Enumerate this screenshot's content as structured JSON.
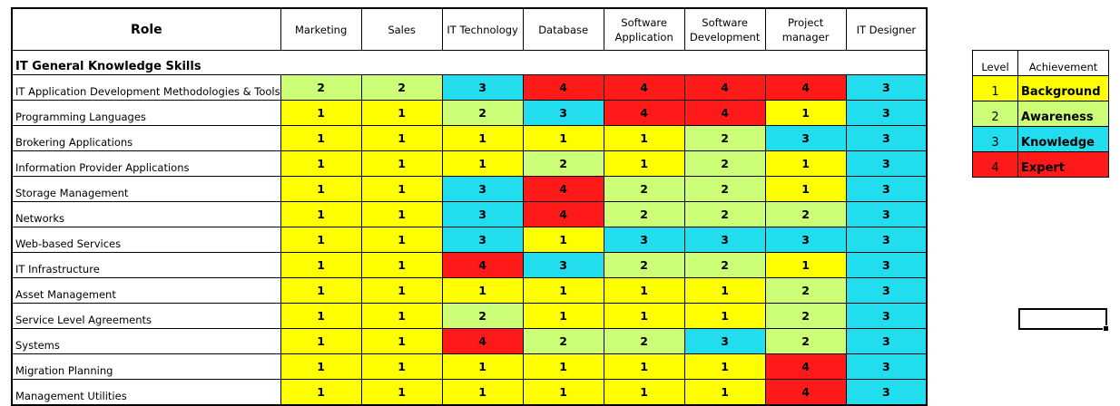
{
  "header": {
    "role": "Role",
    "roles": [
      "Marketing",
      "Sales",
      "IT Technology",
      "Database",
      "Software Application",
      "Software Development",
      "Project manager",
      "IT Designer"
    ]
  },
  "section_title": "IT General Knowledge Skills",
  "skills": [
    {
      "name": "IT Application Development Methodologies & Tools",
      "levels": [
        2,
        2,
        3,
        4,
        4,
        4,
        4,
        3
      ]
    },
    {
      "name": "Programming Languages",
      "levels": [
        1,
        1,
        2,
        3,
        4,
        4,
        1,
        3
      ]
    },
    {
      "name": "Brokering Applications",
      "levels": [
        1,
        1,
        1,
        1,
        1,
        2,
        3,
        3
      ]
    },
    {
      "name": "Information Provider Applications",
      "levels": [
        1,
        1,
        1,
        2,
        1,
        2,
        1,
        3
      ]
    },
    {
      "name": "Storage Management",
      "levels": [
        1,
        1,
        3,
        4,
        2,
        2,
        1,
        3
      ]
    },
    {
      "name": "Networks",
      "levels": [
        1,
        1,
        3,
        4,
        2,
        2,
        2,
        3
      ]
    },
    {
      "name": "Web-based Services",
      "levels": [
        1,
        1,
        3,
        1,
        3,
        3,
        3,
        3
      ]
    },
    {
      "name": "IT Infrastructure",
      "levels": [
        1,
        1,
        4,
        3,
        2,
        2,
        1,
        3
      ]
    },
    {
      "name": "Asset Management",
      "levels": [
        1,
        1,
        1,
        1,
        1,
        1,
        2,
        3
      ]
    },
    {
      "name": "Service Level Agreements",
      "levels": [
        1,
        1,
        2,
        1,
        1,
        1,
        2,
        3
      ]
    },
    {
      "name": "Systems",
      "levels": [
        1,
        1,
        4,
        2,
        2,
        3,
        2,
        3
      ]
    },
    {
      "name": "Migration Planning",
      "levels": [
        1,
        1,
        1,
        1,
        1,
        1,
        4,
        3
      ]
    },
    {
      "name": "Management Utilities",
      "levels": [
        1,
        1,
        1,
        1,
        1,
        1,
        4,
        3
      ]
    }
  ],
  "legend": {
    "level_header": "Level",
    "achievement_header": "Achievement",
    "items": [
      {
        "level": "1",
        "achievement": "Background"
      },
      {
        "level": "2",
        "achievement": "Awareness"
      },
      {
        "level": "3",
        "achievement": "Knowledge"
      },
      {
        "level": "4",
        "achievement": "Expert"
      }
    ]
  },
  "level_colors": {
    "1": "#ffff00",
    "2": "#ccff77",
    "3": "#22ddee",
    "4": "#ff1a1a"
  }
}
